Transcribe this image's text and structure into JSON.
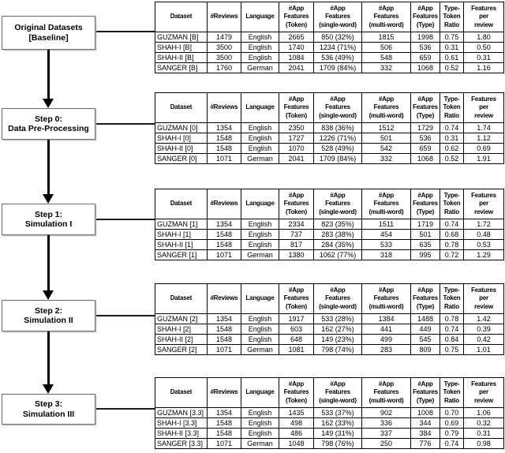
{
  "flow": {
    "boxes": [
      {
        "label": "Original Datasets\n[Baseline]"
      },
      {
        "label": "Step 0:\nData Pre-Processing"
      },
      {
        "label": "Step 1:\nSimulation I"
      },
      {
        "label": "Step 2:\nSimulation II"
      },
      {
        "label": "Step 3:\nSimulation III"
      }
    ]
  },
  "table_headers": [
    "Dataset",
    "#Reviews",
    "Language",
    "#App\nFeatures\n(Token)",
    "#App\nFeatures\n(single-word)",
    "#App\nFeatures\n(multi-word)",
    "#App\nFeatures\n(Type)",
    "Type-\nToken\nRatio",
    "Features\nper\nreview"
  ],
  "tables": [
    {
      "rows": [
        [
          "GUZMAN [B]",
          "1479",
          "English",
          "2665",
          "850 (32%)",
          "1815",
          "1998",
          "0.75",
          "1.80"
        ],
        [
          "SHAH-I [B]",
          "3500",
          "English",
          "1740",
          "1234 (71%)",
          "506",
          "536",
          "0.31",
          "0.50"
        ],
        [
          "SHAH-II [B]",
          "3500",
          "English",
          "1084",
          "536 (49%)",
          "548",
          "659",
          "0.61",
          "0.31"
        ],
        [
          "SANGER [B]",
          "1760",
          "German",
          "2041",
          "1709 (84%)",
          "332",
          "1068",
          "0.52",
          "1.16"
        ]
      ]
    },
    {
      "rows": [
        [
          "GUZMAN [0]",
          "1354",
          "English",
          "2350",
          "838 (36%)",
          "1512",
          "1729",
          "0.74",
          "1.74"
        ],
        [
          "SHAH-I [0]",
          "1548",
          "English",
          "1727",
          "1226 (71%)",
          "501",
          "536",
          "0.31",
          "1.12"
        ],
        [
          "SHAH-II [0]",
          "1548",
          "English",
          "1070",
          "528 (49%)",
          "542",
          "659",
          "0.62",
          "0.69"
        ],
        [
          "SANGER [0]",
          "1071",
          "German",
          "2041",
          "1709 (84%)",
          "332",
          "1068",
          "0.52",
          "1.91"
        ]
      ]
    },
    {
      "rows": [
        [
          "GUZMAN [1]",
          "1354",
          "English",
          "2334",
          "823 (35%)",
          "1511",
          "1719",
          "0.74",
          "1.72"
        ],
        [
          "SHAH-I [1]",
          "1548",
          "English",
          "737",
          "283 (38%)",
          "454",
          "501",
          "0.68",
          "0.48"
        ],
        [
          "SHAH-II [1]",
          "1548",
          "English",
          "817",
          "284 (35%)",
          "533",
          "635",
          "0.78",
          "0.53"
        ],
        [
          "SANGER [1]",
          "1071",
          "German",
          "1380",
          "1062 (77%)",
          "318",
          "995",
          "0.72",
          "1.29"
        ]
      ]
    },
    {
      "rows": [
        [
          "GUZMAN [2]",
          "1354",
          "English",
          "1917",
          "533 (28%)",
          "1384",
          "1488",
          "0.78",
          "1.42"
        ],
        [
          "SHAH-I [2]",
          "1548",
          "English",
          "603",
          "162 (27%)",
          "441",
          "449",
          "0.74",
          "0.39"
        ],
        [
          "SHAH-II [2]",
          "1548",
          "English",
          "648",
          "149 (23%)",
          "499",
          "545",
          "0.84",
          "0.42"
        ],
        [
          "SANGER [2]",
          "1071",
          "German",
          "1081",
          "798 (74%)",
          "283",
          "809",
          "0.75",
          "1.01"
        ]
      ]
    },
    {
      "rows": [
        [
          "GUZMAN [3.3]",
          "1354",
          "English",
          "1435",
          "533 (37%)",
          "902",
          "1008",
          "0.70",
          "1.06"
        ],
        [
          "SHAH-I [3.3]",
          "1548",
          "English",
          "498",
          "162 (33%)",
          "336",
          "344",
          "0.69",
          "0.32"
        ],
        [
          "SHAH-II [3.3]",
          "1548",
          "English",
          "486",
          "149 (31%)",
          "337",
          "384",
          "0.79",
          "0.31"
        ],
        [
          "SANGER [3.3]",
          "1071",
          "German",
          "1048",
          "798 (76%)",
          "250",
          "776",
          "0.74",
          "0.98"
        ]
      ]
    }
  ]
}
